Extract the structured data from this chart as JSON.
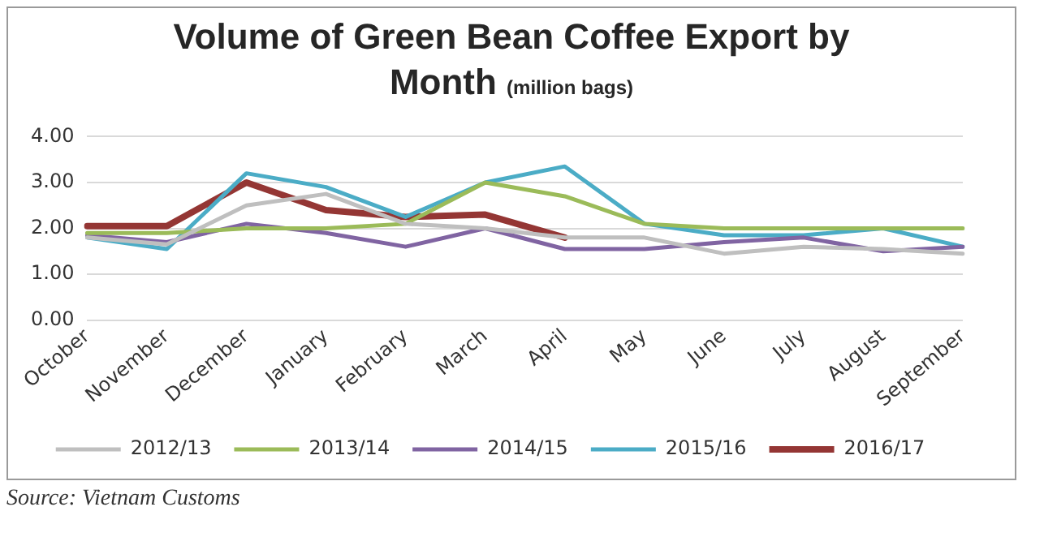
{
  "chart_data": {
    "type": "line",
    "title": "Volume of Green Bean Coffee Export by Month",
    "subtitle": "(million bags)",
    "categories": [
      "October",
      "November",
      "December",
      "January",
      "February",
      "March",
      "April",
      "May",
      "June",
      "July",
      "August",
      "September"
    ],
    "series": [
      {
        "name": "2012/13",
        "color": "#bfbfbf",
        "values": [
          1.8,
          1.65,
          2.5,
          2.75,
          2.1,
          2.0,
          1.8,
          1.8,
          1.45,
          1.6,
          1.55,
          1.45
        ]
      },
      {
        "name": "2013/14",
        "color": "#9bbb59",
        "values": [
          1.9,
          1.9,
          2.0,
          2.0,
          2.1,
          3.0,
          2.7,
          2.1,
          2.0,
          2.0,
          2.0,
          2.0
        ]
      },
      {
        "name": "2014/15",
        "color": "#8064a2",
        "values": [
          1.85,
          1.7,
          2.1,
          1.9,
          1.6,
          2.0,
          1.55,
          1.55,
          1.7,
          1.8,
          1.5,
          1.6
        ]
      },
      {
        "name": "2015/16",
        "color": "#4bacc6",
        "values": [
          1.8,
          1.55,
          3.2,
          2.9,
          2.25,
          3.0,
          3.35,
          2.1,
          1.85,
          1.85,
          2.0,
          1.6
        ]
      },
      {
        "name": "2016/17",
        "color": "#943634",
        "values": [
          2.05,
          2.05,
          3.0,
          2.4,
          2.25,
          2.3,
          1.8,
          null,
          null,
          null,
          null,
          null
        ]
      }
    ],
    "ylim": [
      0,
      4
    ],
    "yticks": [
      {
        "value": 0,
        "label": "0.00"
      },
      {
        "value": 1,
        "label": "1.00"
      },
      {
        "value": 2,
        "label": "2.00"
      },
      {
        "value": 3,
        "label": "3.00"
      },
      {
        "value": 4,
        "label": "4.00"
      }
    ],
    "grid": "y",
    "legend": "bottom",
    "marker": "none",
    "line_style": "solid",
    "annotations": [
      "Source: Vietnam Customs"
    ]
  }
}
